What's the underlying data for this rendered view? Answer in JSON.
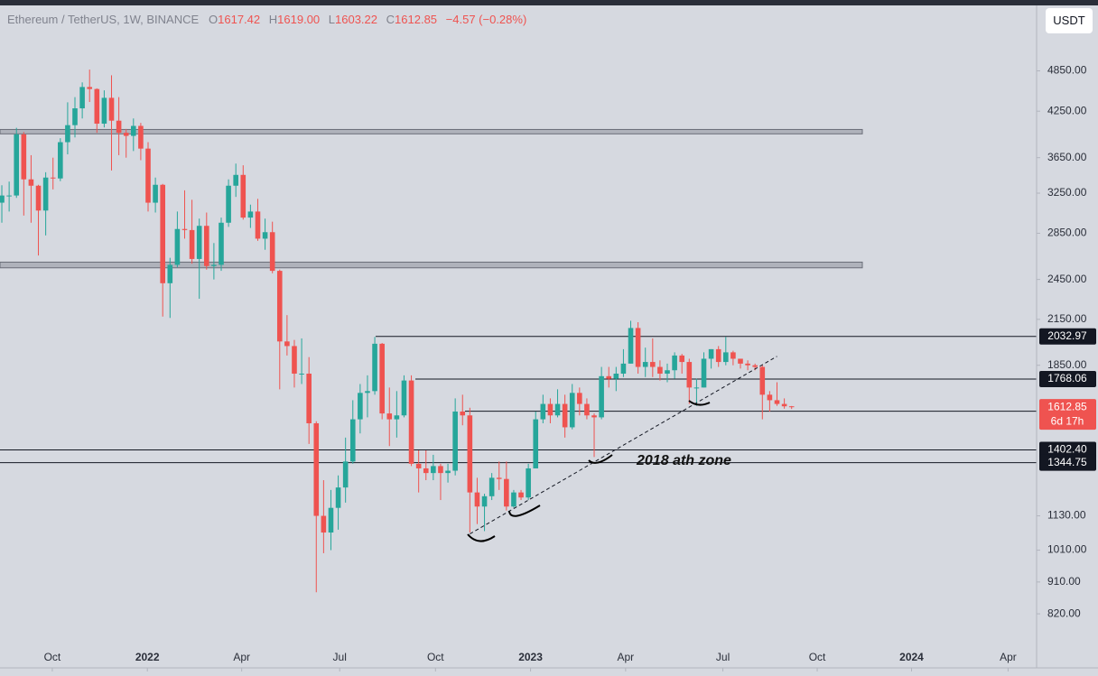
{
  "header": {
    "symbol": "Ethereum / TetherUS, 1W, BINANCE",
    "keys": [
      "O",
      "H",
      "L",
      "C"
    ],
    "values": [
      "1617.42",
      "1619.00",
      "1603.22",
      "1612.85"
    ],
    "change": "−4.57 (−0.28%)",
    "currency": "USDT"
  },
  "chart_data": {
    "type": "candlestick",
    "log_scale": true,
    "up_color": "#26a69a",
    "down_color": "#ef5350",
    "open": [
      3150,
      3225,
      3225,
      3940,
      3400,
      3330,
      3070,
      3420,
      3410,
      3840,
      4060,
      4290,
      4600,
      4570,
      4080,
      4440,
      4120,
      3960,
      3920,
      4050,
      3760,
      3150,
      3340,
      2420,
      2570,
      2890,
      2880,
      2620,
      2920,
      2560,
      2570,
      2950,
      3330,
      3450,
      3000,
      3060,
      2800,
      2860,
      2520,
      2000,
      1970,
      1800,
      1800,
      1530,
      1130,
      1070,
      1160,
      1240,
      1350,
      1550,
      1690,
      1700,
      1985,
      1580,
      1550,
      1570,
      1760,
      1340,
      1320,
      1300,
      1330,
      1300,
      1310,
      1590,
      1570,
      1220,
      1165,
      1205,
      1280,
      1275,
      1165,
      1220,
      1200,
      1320,
      1550,
      1630,
      1570,
      1630,
      1510,
      1690,
      1630,
      1570,
      1560,
      1785,
      1770,
      1800,
      1860,
      2090,
      1840,
      1870,
      1840,
      1800,
      1820,
      1910,
      1870,
      1720,
      1720,
      1890,
      1950,
      1870,
      1930,
      1890,
      1860,
      1850,
      1840,
      1680,
      1650,
      1630,
      1617.42
    ],
    "high": [
      3335,
      3375,
      4025,
      3970,
      3680,
      3340,
      3480,
      3650,
      3890,
      4375,
      4450,
      4670,
      4870,
      4580,
      4550,
      4780,
      4450,
      4010,
      4150,
      4090,
      3840,
      3420,
      3350,
      2630,
      3060,
      3280,
      3180,
      2990,
      3050,
      2760,
      3000,
      3400,
      3580,
      3560,
      3130,
      3190,
      2990,
      2960,
      2530,
      2180,
      2010,
      2020,
      1900,
      1540,
      1270,
      1230,
      1290,
      1460,
      1650,
      1740,
      1790,
      2030,
      1990,
      1720,
      1700,
      1790,
      1790,
      1400,
      1400,
      1380,
      1340,
      1340,
      1660,
      1680,
      1610,
      1280,
      1215,
      1300,
      1350,
      1350,
      1230,
      1230,
      1340,
      1590,
      1680,
      1660,
      1710,
      1680,
      1740,
      1720,
      1660,
      1580,
      1840,
      1840,
      1840,
      1950,
      2140,
      2130,
      1960,
      2020,
      1880,
      1860,
      1930,
      1920,
      1890,
      1770,
      1930,
      1950,
      1970,
      2030,
      1940,
      1890,
      1880,
      1860,
      1850,
      1700,
      1750,
      1660,
      1619
    ],
    "low": [
      2950,
      3060,
      3200,
      3020,
      2950,
      2650,
      2830,
      3290,
      3380,
      3690,
      3900,
      4150,
      4380,
      3960,
      4030,
      3500,
      3680,
      3650,
      3730,
      3620,
      3060,
      3050,
      2170,
      2160,
      2550,
      2800,
      2580,
      2300,
      2530,
      2450,
      2520,
      2910,
      3210,
      2980,
      2900,
      2780,
      2700,
      2500,
      1710,
      1910,
      1720,
      1740,
      1430,
      880,
      1000,
      1010,
      1080,
      1180,
      1340,
      1480,
      1560,
      1680,
      1550,
      1420,
      1460,
      1560,
      1330,
      1220,
      1270,
      1270,
      1190,
      1260,
      1290,
      1520,
      1070,
      1100,
      1075,
      1190,
      1230,
      1150,
      1160,
      1190,
      1190,
      1320,
      1530,
      1530,
      1560,
      1460,
      1500,
      1570,
      1550,
      1370,
      1550,
      1720,
      1700,
      1780,
      1860,
      1800,
      1780,
      1780,
      1760,
      1750,
      1770,
      1800,
      1630,
      1620,
      1720,
      1830,
      1840,
      1850,
      1850,
      1830,
      1820,
      1820,
      1550,
      1590,
      1620,
      1605,
      1603.22
    ],
    "close": [
      3225,
      3225,
      3940,
      3400,
      3330,
      3070,
      3420,
      3410,
      3840,
      4060,
      4290,
      4600,
      4570,
      4080,
      4440,
      4120,
      3960,
      3920,
      4050,
      3760,
      3150,
      3340,
      2420,
      2570,
      2890,
      2880,
      2620,
      2920,
      2560,
      2570,
      2950,
      3330,
      3450,
      3000,
      3060,
      2800,
      2860,
      2520,
      2000,
      1970,
      1800,
      1800,
      1530,
      1130,
      1070,
      1160,
      1240,
      1350,
      1550,
      1690,
      1700,
      1985,
      1580,
      1550,
      1570,
      1760,
      1340,
      1320,
      1300,
      1330,
      1300,
      1310,
      1590,
      1570,
      1220,
      1165,
      1205,
      1280,
      1275,
      1165,
      1220,
      1200,
      1320,
      1550,
      1630,
      1570,
      1630,
      1510,
      1690,
      1630,
      1570,
      1560,
      1785,
      1770,
      1800,
      1860,
      2090,
      1840,
      1870,
      1840,
      1800,
      1820,
      1910,
      1870,
      1720,
      1720,
      1890,
      1950,
      1870,
      1930,
      1890,
      1860,
      1850,
      1840,
      1680,
      1650,
      1630,
      1617.42,
      1612.85
    ],
    "countdown": "6d 17h",
    "xlim": [
      -0.25,
      141.5
    ],
    "xticks": [
      {
        "value": 6.9,
        "label": "Oct"
      },
      {
        "value": 19.9,
        "label": "2022"
      },
      {
        "value": 32.8,
        "label": "Apr"
      },
      {
        "value": 46.2,
        "label": "Jul"
      },
      {
        "value": 59.3,
        "label": "Oct"
      },
      {
        "value": 72.3,
        "label": "2023"
      },
      {
        "value": 85.3,
        "label": "Apr"
      },
      {
        "value": 98.6,
        "label": "Jul"
      },
      {
        "value": 111.5,
        "label": "Oct"
      },
      {
        "value": 124.4,
        "label": "2024"
      },
      {
        "value": 137.6,
        "label": "Apr"
      }
    ],
    "ylim": [
      687,
      5973
    ],
    "yticks": [
      {
        "value": 4850,
        "label": "4850.00"
      },
      {
        "value": 4250,
        "label": "4250.00"
      },
      {
        "value": 3650,
        "label": "3650.00"
      },
      {
        "value": 3250,
        "label": "3250.00"
      },
      {
        "value": 2850,
        "label": "2850.00"
      },
      {
        "value": 2450,
        "label": "2450.00"
      },
      {
        "value": 2150,
        "label": "2150.00"
      },
      {
        "value": 1850,
        "label": "1850.00"
      },
      {
        "value": 1130,
        "label": "1130.00"
      },
      {
        "value": 1010,
        "label": "1010.00"
      },
      {
        "value": 910,
        "label": "910.00"
      },
      {
        "value": 820,
        "label": "820.00"
      }
    ],
    "levels": [
      2032.97,
      1768.06,
      1591.63,
      {
        "value": 1402.4,
        "label": "1402.40"
      },
      1344.75
    ],
    "zones": [
      [
        3946,
        4003
      ],
      [
        2545,
        2593
      ]
    ],
    "trendline": {
      "x": [
        64,
        106
      ],
      "y": [
        1065,
        1905
      ]
    },
    "annotation": "2018 ath zone"
  }
}
